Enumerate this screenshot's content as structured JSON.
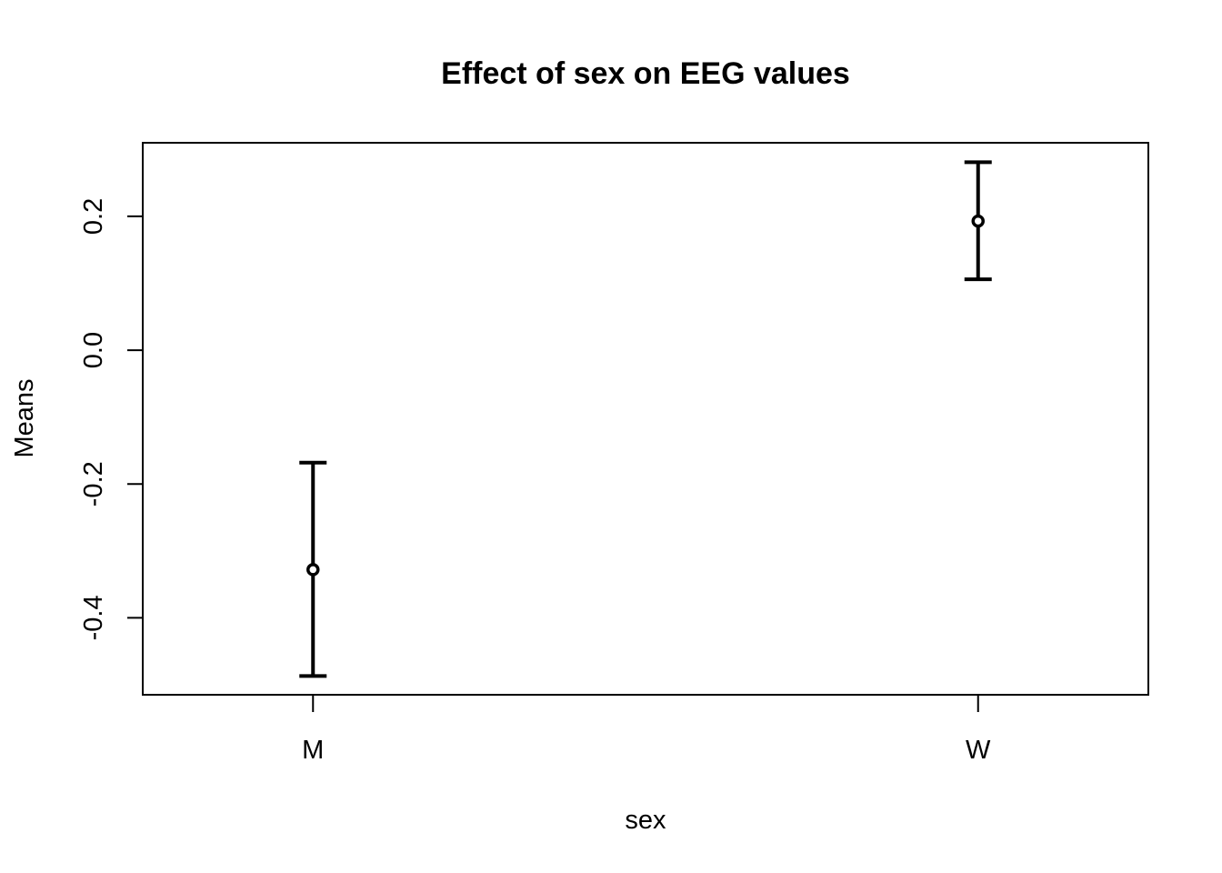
{
  "chart_data": {
    "type": "scatter",
    "title": "Effect of sex on EEG values",
    "xlabel": "sex",
    "ylabel": "Means",
    "categories": [
      "M",
      "W"
    ],
    "series": [
      {
        "values": [
          -0.328,
          0.193
        ],
        "error_lower": [
          -0.487,
          0.106
        ],
        "error_upper": [
          -0.168,
          0.281
        ]
      }
    ],
    "ylim": [
      -0.515,
      0.31
    ],
    "yticks": [
      -0.4,
      -0.2,
      0.0,
      0.2
    ],
    "ytick_labels": [
      "-0.4",
      "-0.2",
      "0.0",
      "0.2"
    ],
    "grid": false,
    "legend": "none",
    "colors": {
      "marks": "#000000",
      "background": "#ffffff"
    }
  }
}
